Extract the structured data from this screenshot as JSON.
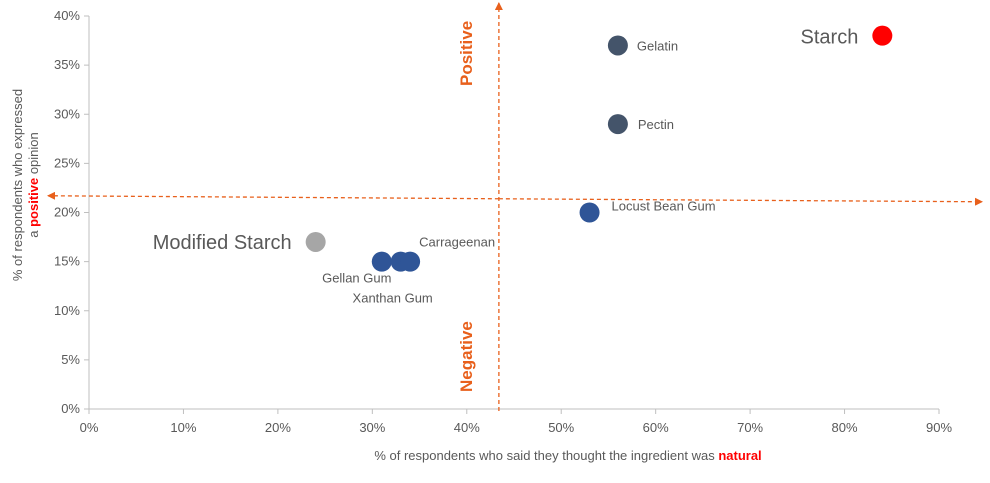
{
  "chart_data": {
    "type": "scatter",
    "xlabel": {
      "prefix": "% of respondents who said they thought the ingredient was ",
      "emphasis": "natural"
    },
    "ylabel": {
      "line1": "% of respondents who expressed",
      "line2_prefix": "a ",
      "line2_emphasis": "positive",
      "line2_suffix": " opinion"
    },
    "xlim": [
      0,
      90
    ],
    "ylim": [
      0,
      40
    ],
    "x_ticks": [
      0,
      10,
      20,
      30,
      40,
      50,
      60,
      70,
      80,
      90
    ],
    "y_ticks": [
      0,
      5,
      10,
      15,
      20,
      25,
      30,
      35,
      40
    ],
    "tick_suffix": "%",
    "grid": false,
    "quadrant_labels": {
      "top": "Positive",
      "bottom": "Negative"
    },
    "divider": {
      "x": 43.4,
      "y": 21.5
    },
    "colors": {
      "divider": "#e8601c",
      "emphasis": "#ff0000",
      "axis_text": "#595959"
    },
    "points": [
      {
        "label": "Starch",
        "x": 84,
        "y": 38,
        "color": "#ff0000",
        "large_label": true
      },
      {
        "label": "Gelatin",
        "x": 56,
        "y": 37,
        "color": "#44546a"
      },
      {
        "label": "Pectin",
        "x": 56,
        "y": 29,
        "color": "#44546a"
      },
      {
        "label": "Locust Bean Gum",
        "x": 53,
        "y": 20,
        "color": "#2f5597"
      },
      {
        "label": "Modified Starch",
        "x": 24,
        "y": 17,
        "color": "#a6a6a6",
        "large_label": true
      },
      {
        "label": "Gellan Gum",
        "x": 31,
        "y": 15,
        "color": "#2f5597"
      },
      {
        "label": "Xanthan Gum",
        "x": 33,
        "y": 15,
        "color": "#2f5597"
      },
      {
        "label": "Carrageenan",
        "x": 34,
        "y": 15,
        "color": "#2f5597"
      }
    ]
  }
}
